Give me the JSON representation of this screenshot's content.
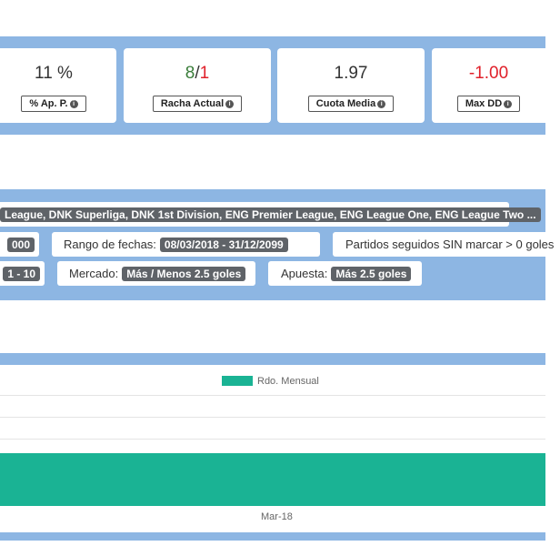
{
  "stats": [
    {
      "value": "11 %",
      "label": "% Ap. P."
    },
    {
      "value_a": "8",
      "sep": "/",
      "value_b": "1",
      "label": "Racha Actual"
    },
    {
      "value": "1.97",
      "label": "Cuota Media"
    },
    {
      "value": "-1.00",
      "label": "Max DD"
    }
  ],
  "filters": {
    "leagues": "League, DNK Superliga, DNK 1st Division, ENG Premier League, ENG League One, ENG League Two ...",
    "row2_partial": "000",
    "date_label": "Rango de fechas:",
    "date_value": "08/03/2018 - 31/12/2099",
    "streak_label": "Partidos seguidos SIN marcar > 0 goles",
    "row3_partial": "1 - 10",
    "market_label": "Mercado:",
    "market_value": "Más / Menos 2.5 goles",
    "bet_label": "Apuesta:",
    "bet_value": "Más 2.5 goles"
  },
  "colors": {
    "green": "#3a7d3a",
    "red": "#e0202a",
    "bar": "#1ab394",
    "band": "#8db6e3"
  },
  "chart_data": {
    "type": "bar",
    "categories": [
      "Mar-18"
    ],
    "series": [
      {
        "name": "Rdo. Mensual",
        "values": [
          -1.0
        ]
      }
    ],
    "legend": "top"
  }
}
